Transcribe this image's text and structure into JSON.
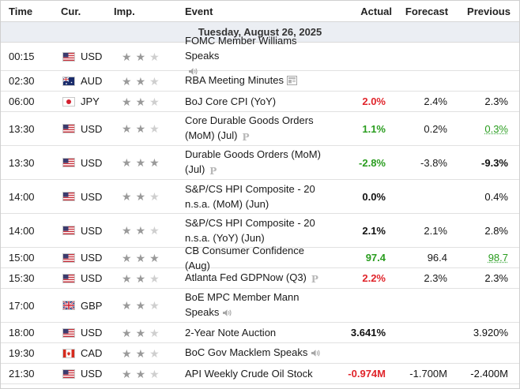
{
  "header": {
    "time": "Time",
    "currency": "Cur.",
    "importance": "Imp.",
    "event": "Event",
    "actual": "Actual",
    "forecast": "Forecast",
    "previous": "Previous"
  },
  "date_label": "Tuesday, August 26, 2025",
  "colors": {
    "positive": "#2a9d1f",
    "negative": "#e0252b",
    "star_on": "#9a9a9a",
    "star_off": "#cfcfcf"
  },
  "rows": [
    {
      "time": "00:15",
      "flag": "us-flag-icon",
      "currency": "USD",
      "importance": 2,
      "event_line1": "FOMC Member Williams Speaks",
      "event_line2": "",
      "icon": "speaker-icon",
      "actual": "",
      "actual_tone": "black",
      "forecast": "",
      "previous": "",
      "previous_tone": "black"
    },
    {
      "time": "02:30",
      "flag": "au-flag-icon",
      "currency": "AUD",
      "importance": 2,
      "event_line1": "RBA Meeting Minutes",
      "event_line2": "",
      "icon": "document-icon",
      "actual": "",
      "actual_tone": "black",
      "forecast": "",
      "previous": "",
      "previous_tone": "black"
    },
    {
      "time": "06:00",
      "flag": "jp-flag-icon",
      "currency": "JPY",
      "importance": 2,
      "event_line1": "BoJ Core CPI (YoY)",
      "event_line2": "",
      "icon": "",
      "actual": "2.0%",
      "actual_tone": "red",
      "forecast": "2.4%",
      "previous": "2.3%",
      "previous_tone": "black"
    },
    {
      "time": "13:30",
      "flag": "us-flag-icon",
      "currency": "USD",
      "importance": 2,
      "event_line1": "Core Durable Goods Orders",
      "event_line2": "(MoM) (Jul)",
      "icon": "preliminary-icon",
      "actual": "1.1%",
      "actual_tone": "green",
      "forecast": "0.2%",
      "previous": "0.3%",
      "previous_tone": "green-under"
    },
    {
      "time": "13:30",
      "flag": "us-flag-icon",
      "currency": "USD",
      "importance": 3,
      "event_line1": "Durable Goods Orders (MoM)",
      "event_line2": "(Jul)",
      "icon": "preliminary-icon",
      "actual": "-2.8%",
      "actual_tone": "green",
      "forecast": "-3.8%",
      "previous": "-9.3%",
      "previous_tone": "bold"
    },
    {
      "time": "14:00",
      "flag": "us-flag-icon",
      "currency": "USD",
      "importance": 2,
      "event_line1": "S&P/CS HPI Composite - 20",
      "event_line2": "n.s.a. (MoM) (Jun)",
      "icon": "",
      "actual": "0.0%",
      "actual_tone": "black",
      "forecast": "",
      "previous": "0.4%",
      "previous_tone": "black"
    },
    {
      "time": "14:00",
      "flag": "us-flag-icon",
      "currency": "USD",
      "importance": 2,
      "event_line1": "S&P/CS HPI Composite - 20",
      "event_line2": "n.s.a. (YoY) (Jun)",
      "icon": "",
      "actual": "2.1%",
      "actual_tone": "black",
      "forecast": "2.1%",
      "previous": "2.8%",
      "previous_tone": "black"
    },
    {
      "time": "15:00",
      "flag": "us-flag-icon",
      "currency": "USD",
      "importance": 3,
      "event_line1": "CB Consumer Confidence (Aug)",
      "event_line2": "",
      "icon": "",
      "actual": "97.4",
      "actual_tone": "green",
      "forecast": "96.4",
      "previous": "98.7",
      "previous_tone": "green-under"
    },
    {
      "time": "15:30",
      "flag": "us-flag-icon",
      "currency": "USD",
      "importance": 2,
      "event_line1": "Atlanta Fed GDPNow (Q3)",
      "event_line2": "",
      "icon": "preliminary-icon",
      "actual": "2.2%",
      "actual_tone": "red",
      "forecast": "2.3%",
      "previous": "2.3%",
      "previous_tone": "black"
    },
    {
      "time": "17:00",
      "flag": "gb-flag-icon",
      "currency": "GBP",
      "importance": 2,
      "event_line1": "BoE MPC Member Mann",
      "event_line2": "Speaks",
      "icon": "speaker-icon",
      "actual": "",
      "actual_tone": "black",
      "forecast": "",
      "previous": "",
      "previous_tone": "black"
    },
    {
      "time": "18:00",
      "flag": "us-flag-icon",
      "currency": "USD",
      "importance": 2,
      "event_line1": "2-Year Note Auction",
      "event_line2": "",
      "icon": "",
      "actual": "3.641%",
      "actual_tone": "black",
      "forecast": "",
      "previous": "3.920%",
      "previous_tone": "black"
    },
    {
      "time": "19:30",
      "flag": "ca-flag-icon",
      "currency": "CAD",
      "importance": 2,
      "event_line1": "BoC Gov Macklem Speaks",
      "event_line2": "",
      "icon": "speaker-icon",
      "actual": "",
      "actual_tone": "black",
      "forecast": "",
      "previous": "",
      "previous_tone": "black"
    },
    {
      "time": "21:30",
      "flag": "us-flag-icon",
      "currency": "USD",
      "importance": 2,
      "event_line1": "API Weekly Crude Oil Stock",
      "event_line2": "",
      "icon": "",
      "actual": "-0.974M",
      "actual_tone": "red",
      "forecast": "-1.700M",
      "previous": "-2.400M",
      "previous_tone": "black"
    }
  ]
}
